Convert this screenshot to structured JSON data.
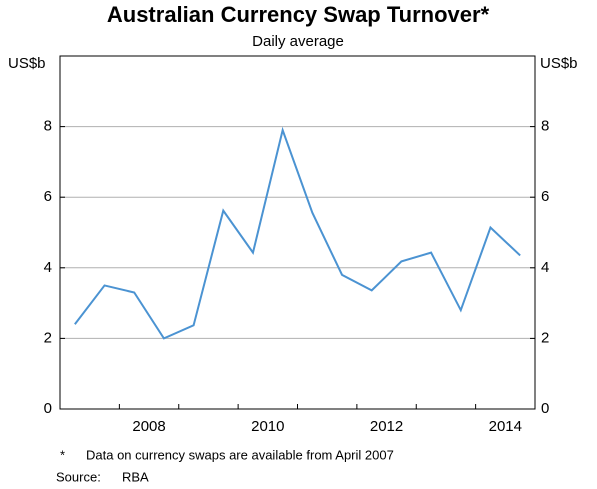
{
  "chart_data": {
    "type": "line",
    "title": "Australian Currency Swap Turnover*",
    "subtitle": "Daily average",
    "y_label": "US$b",
    "y2_label": "US$b",
    "x": [
      2007.25,
      2007.75,
      2008.25,
      2008.75,
      2009.25,
      2009.75,
      2010.25,
      2010.75,
      2011.25,
      2011.75,
      2012.25,
      2012.75,
      2013.25,
      2013.75,
      2014.25,
      2014.75
    ],
    "series": [
      {
        "name": "Currency swap turnover",
        "color": "#4b93d2",
        "values": [
          2.4,
          3.5,
          3.3,
          2.0,
          2.37,
          5.62,
          4.43,
          7.9,
          5.56,
          3.8,
          3.36,
          4.18,
          4.43,
          2.8,
          5.14,
          4.35
        ]
      }
    ],
    "xlim": [
      2007,
      2015
    ],
    "xticks": [
      {
        "value": 2008.5,
        "label": "2008"
      },
      {
        "value": 2010.5,
        "label": "2010"
      },
      {
        "value": 2012.5,
        "label": "2012"
      },
      {
        "value": 2014.5,
        "label": "2014"
      }
    ],
    "xminor_ticks": [
      2008,
      2009,
      2010,
      2011,
      2012,
      2013,
      2014
    ],
    "ylim": [
      0,
      10
    ],
    "yticks": [
      0,
      2,
      4,
      6,
      8
    ],
    "y2lim": [
      0,
      10
    ],
    "y2ticks": [
      0,
      2,
      4,
      6,
      8
    ],
    "grid": true,
    "notes": [
      "*",
      "Data on currency swaps are available from April 2007"
    ],
    "source": [
      "Source:",
      "RBA"
    ]
  }
}
